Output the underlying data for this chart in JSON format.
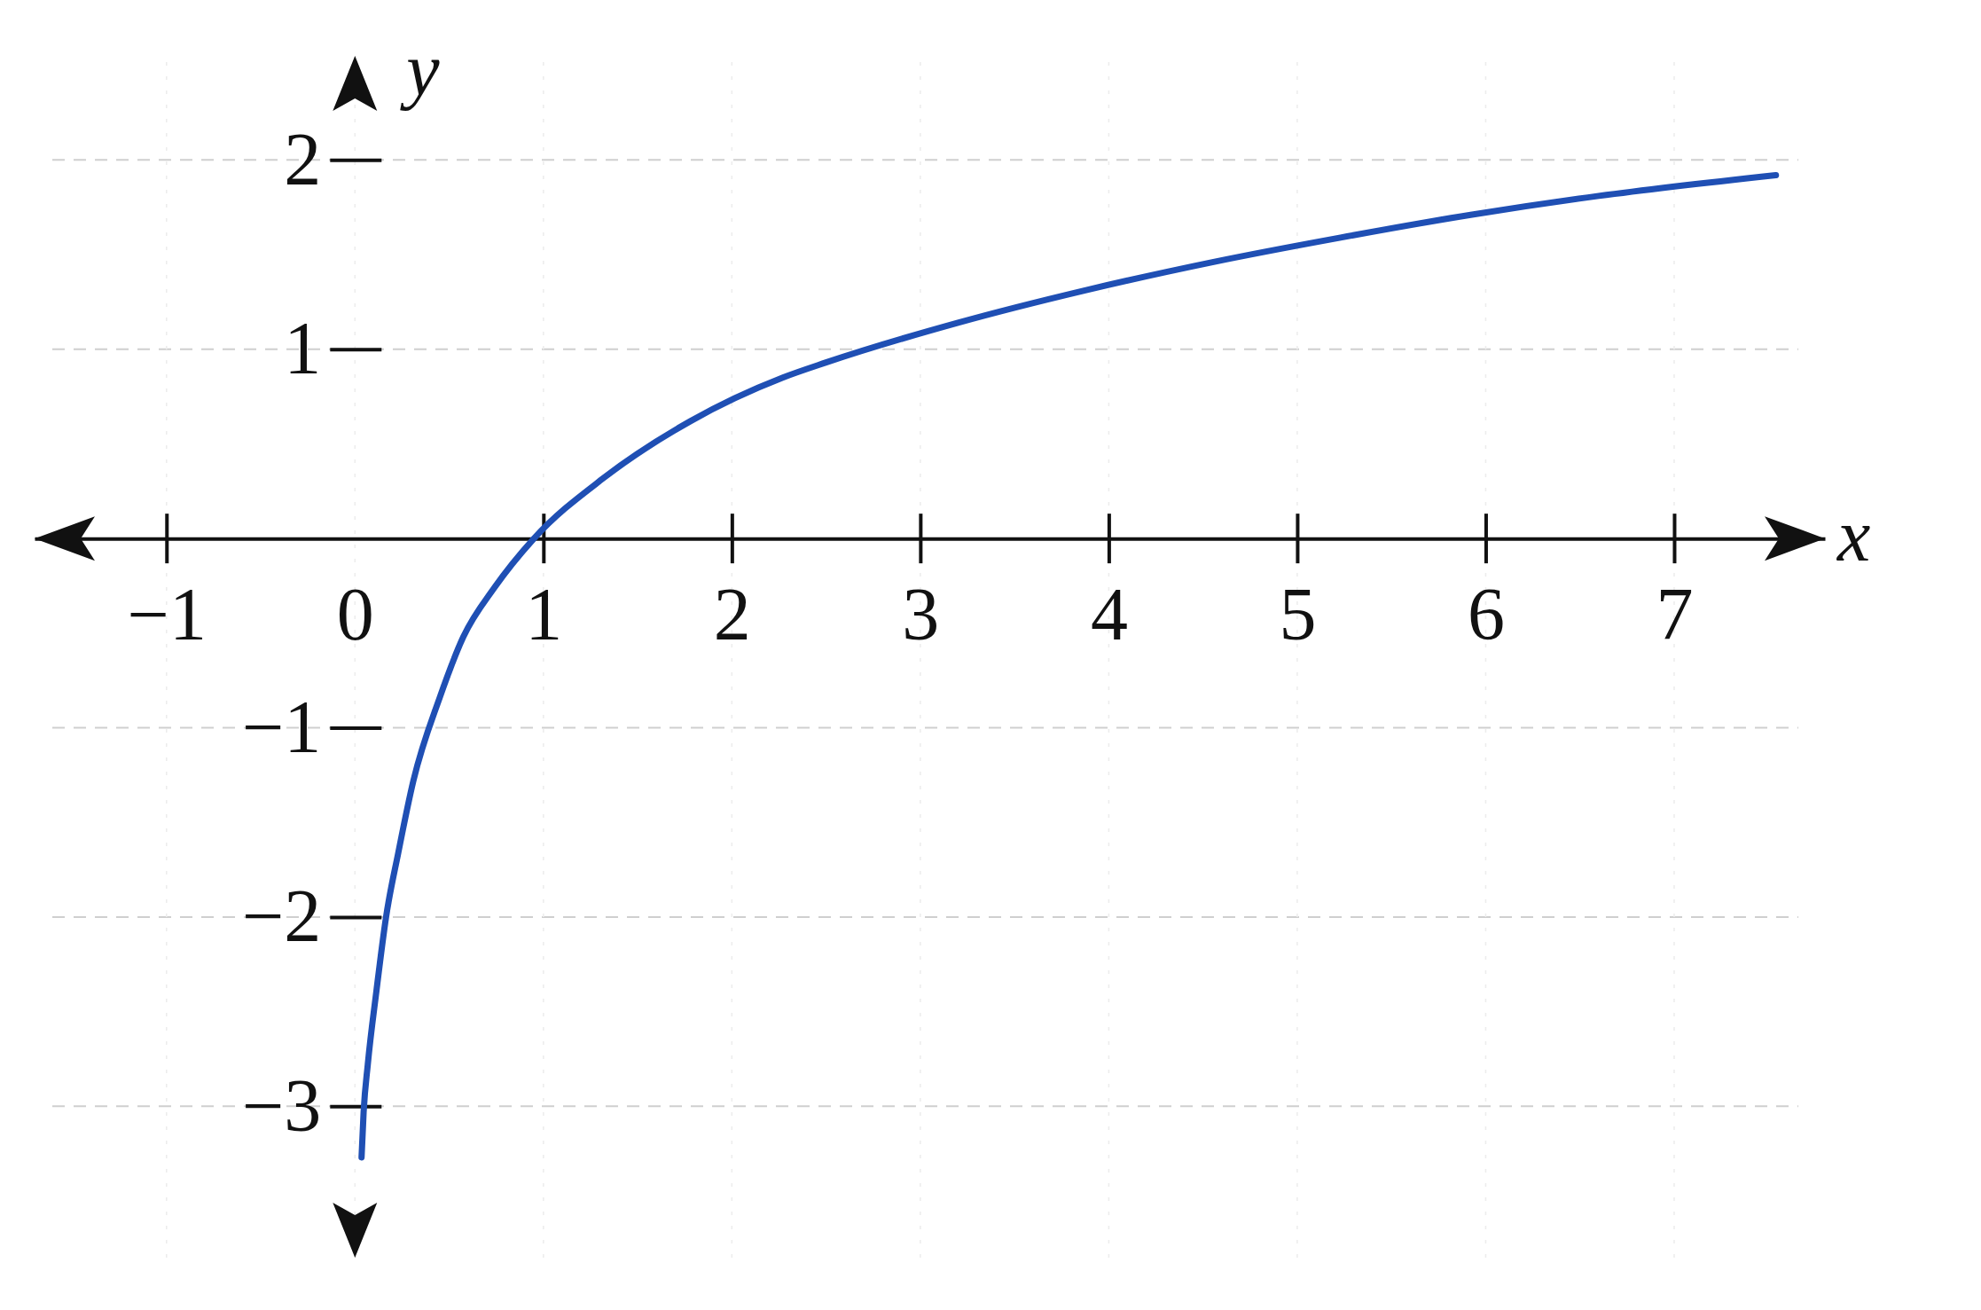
{
  "chart_data": {
    "type": "line",
    "xlabel": "x",
    "ylabel": "y",
    "x": [
      0.035,
      0.046,
      0.068,
      0.114,
      0.165,
      0.23,
      0.31,
      0.45,
      0.575,
      0.74,
      0.95,
      1.32,
      1.78,
      2.27,
      2.5,
      3.2,
      3.87,
      4.55,
      5.23,
      5.92,
      6.6,
      7.54
    ],
    "series": [
      {
        "color": "#1f4fb4",
        "values": [
          -3.27,
          -3.03,
          -2.78,
          -2.39,
          -2,
          -1.66,
          -1.28,
          -0.84,
          -0.52,
          -0.26,
          0,
          0.32,
          0.62,
          0.85,
          0.93,
          1.14,
          1.31,
          1.46,
          1.59,
          1.71,
          1.81,
          1.92
        ]
      }
    ],
    "xlim": [
      -1.7,
      7.8
    ],
    "ylim": [
      -3.8,
      2.55
    ],
    "xticks": [
      {
        "value": -1,
        "label": "−1"
      },
      0,
      1,
      2,
      3,
      4,
      5,
      6,
      7
    ],
    "yticks": [
      {
        "value": -3,
        "label": "−3"
      },
      {
        "value": -2,
        "label": "−2"
      },
      {
        "value": -1,
        "label": "−1"
      },
      1,
      2
    ],
    "grid": true
  }
}
